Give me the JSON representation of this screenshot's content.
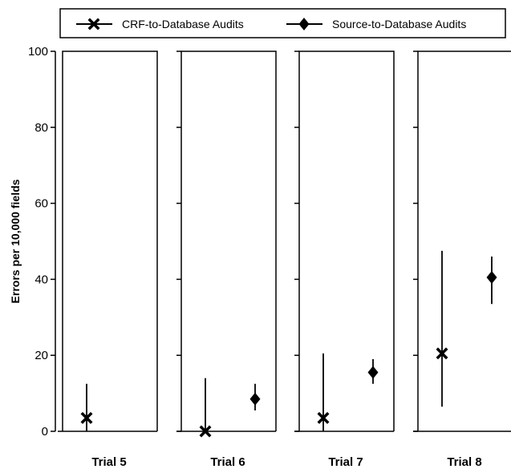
{
  "chart_data": {
    "type": "scatter",
    "ylabel": "Errors per 10,000 fields",
    "xlabel": "",
    "ylim": [
      0,
      100
    ],
    "yticks": [
      0,
      20,
      40,
      60,
      80,
      100
    ],
    "categories": [
      "Trial 5",
      "Trial 6",
      "Trial 7",
      "Trial 8"
    ],
    "legend_position": "top",
    "grid": false,
    "series": [
      {
        "name": "CRF-to-Database Audits",
        "marker": "x",
        "color": "#000000",
        "points": [
          {
            "category": "Trial 5",
            "value": 3.5,
            "lower": 0,
            "upper": 12.5
          },
          {
            "category": "Trial 6",
            "value": 0,
            "lower": 0,
            "upper": 14
          },
          {
            "category": "Trial 7",
            "value": 3.5,
            "lower": 0,
            "upper": 20.5
          },
          {
            "category": "Trial 8",
            "value": 20.5,
            "lower": 6.5,
            "upper": 47.5
          }
        ]
      },
      {
        "name": "Source-to-Database Audits",
        "marker": "diamond",
        "color": "#000000",
        "points": [
          {
            "category": "Trial 5",
            "value": null,
            "lower": null,
            "upper": null
          },
          {
            "category": "Trial 6",
            "value": 8.5,
            "lower": 5.5,
            "upper": 12.5
          },
          {
            "category": "Trial 7",
            "value": 15.5,
            "lower": 12.5,
            "upper": 19
          },
          {
            "category": "Trial 8",
            "value": 40.5,
            "lower": 33.5,
            "upper": 46
          }
        ]
      }
    ]
  }
}
